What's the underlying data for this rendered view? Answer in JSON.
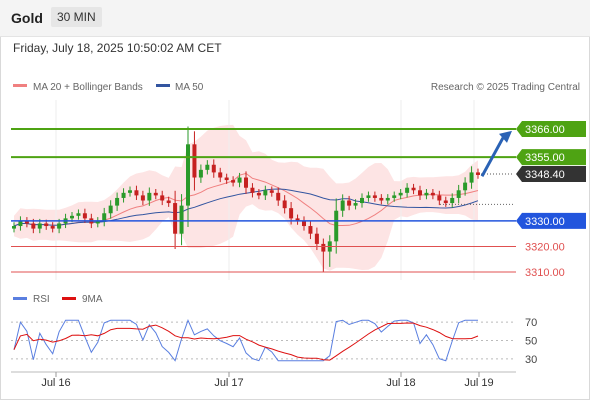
{
  "header": {
    "title": "Gold",
    "timeframe": "30 MIN"
  },
  "timestamp": "Friday, July 18, 2025 10:50:02 AM CET",
  "legend": {
    "ma20_label": "MA 20 + Bollinger Bands",
    "ma50_label": "MA 50",
    "copyright": "Research © 2025 Trading Central",
    "rsi_label": "RSI",
    "rsi_ma_label": "9MA"
  },
  "colors": {
    "ma20": "#f08080",
    "ma50": "#3355a0",
    "bollinger_fill": "#fde4e4",
    "up_candle": "#2a9a2a",
    "down_candle": "#c62020",
    "resistance": "#4ea313",
    "pivot": "#2255dd",
    "support": "#e05050",
    "last_price": "#333333",
    "arrow": "#2a62b5",
    "rsi": "#5a7fe0",
    "rsi_ma": "#dd1111"
  },
  "chart_data": {
    "type": "candlestick",
    "instrument": "Gold",
    "timeframe": "30 MIN",
    "ylim": [
      3306,
      3380
    ],
    "x_ticks": [
      "Jul 16",
      "Jul 17",
      "Jul 18",
      "Jul 19"
    ],
    "levels": [
      {
        "label": "3366.00",
        "value": 3366.0,
        "kind": "resistance"
      },
      {
        "label": "3355.00",
        "value": 3355.0,
        "kind": "resistance"
      },
      {
        "label": "3348.40",
        "value": 3348.4,
        "kind": "last"
      },
      {
        "label": "3330.00",
        "value": 3330.0,
        "kind": "pivot"
      },
      {
        "label": "3320.00",
        "value": 3320.0,
        "kind": "support"
      },
      {
        "label": "3310.00",
        "value": 3310.0,
        "kind": "support"
      }
    ],
    "close_series": [
      3328,
      3330,
      3329,
      3327,
      3329,
      3328,
      3327,
      3329,
      3331,
      3332,
      3333,
      3331,
      3329,
      3330,
      3333,
      3336,
      3339,
      3341,
      3342,
      3340,
      3338,
      3341,
      3340,
      3338,
      3337,
      3325,
      3336,
      3360,
      3347,
      3350,
      3352,
      3349,
      3347,
      3346,
      3345,
      3347,
      3343,
      3341,
      3340,
      3342,
      3341,
      3338,
      3335,
      3331,
      3330,
      3328,
      3325,
      3321,
      3318,
      3322,
      3334,
      3338,
      3336,
      3337,
      3339,
      3340,
      3339,
      3338,
      3339,
      3340,
      3341,
      3343,
      3342,
      3340,
      3341,
      3340,
      3338,
      3337,
      3339,
      3342,
      3345,
      3349,
      3348
    ],
    "rsi": {
      "levels": [
        30,
        50,
        70
      ],
      "ylim": [
        20,
        80
      ]
    }
  }
}
